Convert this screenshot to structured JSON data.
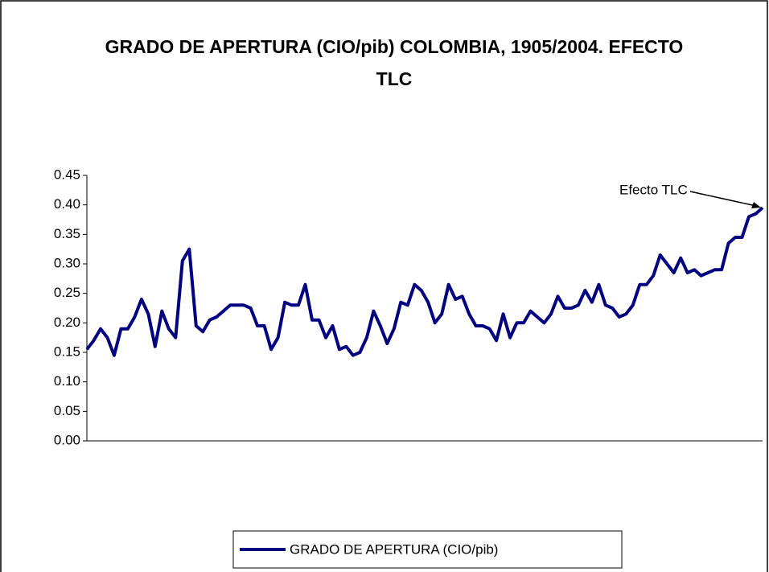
{
  "chart_data": {
    "type": "line",
    "title": "GRADO DE APERTURA (CIO/pib) COLOMBIA, 1905/2004. EFECTO TLC",
    "annotation": "Efecto TLC",
    "categories": [
      null,
      null,
      null,
      null,
      null,
      null,
      null,
      null,
      null,
      null,
      null,
      null,
      null,
      null,
      null,
      null,
      null,
      null,
      null,
      null,
      null,
      null,
      null,
      null,
      null,
      null,
      null,
      null,
      null,
      null,
      null,
      null,
      null,
      null,
      null,
      null,
      null,
      null,
      null,
      null,
      null,
      null,
      null,
      null,
      null,
      null,
      null,
      null,
      null,
      null,
      null,
      null,
      null,
      null,
      null,
      null,
      null,
      null,
      null,
      null,
      null,
      null,
      null,
      null,
      null,
      null,
      null,
      null,
      null,
      null,
      null,
      null,
      null,
      null,
      null,
      null,
      null,
      null,
      null,
      null,
      null,
      null,
      null,
      null,
      null,
      null,
      null,
      null,
      null,
      null,
      null,
      null,
      null,
      null,
      null,
      null,
      null,
      null,
      null,
      null
    ],
    "series": [
      {
        "name": "GRADO DE APERTURA (CIO/pib)",
        "color": "#000080",
        "values": [
          0.155,
          0.17,
          0.19,
          0.175,
          0.145,
          0.19,
          0.19,
          0.21,
          0.24,
          0.215,
          0.16,
          0.22,
          0.19,
          0.175,
          0.305,
          0.325,
          0.195,
          0.185,
          0.205,
          0.21,
          0.22,
          0.23,
          0.23,
          0.23,
          0.225,
          0.195,
          0.195,
          0.155,
          0.175,
          0.235,
          0.23,
          0.23,
          0.265,
          0.205,
          0.205,
          0.175,
          0.195,
          0.155,
          0.16,
          0.145,
          0.15,
          0.175,
          0.22,
          0.195,
          0.165,
          0.19,
          0.235,
          0.23,
          0.265,
          0.255,
          0.235,
          0.2,
          0.215,
          0.265,
          0.24,
          0.245,
          0.215,
          0.195,
          0.195,
          0.19,
          0.17,
          0.215,
          0.175,
          0.2,
          0.2,
          0.22,
          0.21,
          0.2,
          0.215,
          0.245,
          0.225,
          0.225,
          0.23,
          0.255,
          0.235,
          0.265,
          0.23,
          0.225,
          0.21,
          0.215,
          0.23,
          0.265,
          0.265,
          0.28,
          0.315,
          0.3,
          0.285,
          0.31,
          0.285,
          0.29,
          0.28,
          0.285,
          0.29,
          0.29,
          0.335,
          0.345,
          0.345,
          0.38,
          0.385,
          0.395
        ]
      }
    ],
    "ylim": [
      0,
      0.45
    ],
    "yticks": [
      {
        "value": 0,
        "label": "0.00"
      },
      0.05,
      {
        "value": 0.1,
        "label": "0.10"
      },
      0.15,
      {
        "value": 0.2,
        "label": "0.20"
      },
      0.25,
      {
        "value": 0.3,
        "label": "0.30"
      },
      0.35,
      {
        "value": 0.4,
        "label": "0.40"
      },
      0.45
    ],
    "grid": false,
    "legend": "bottom"
  }
}
